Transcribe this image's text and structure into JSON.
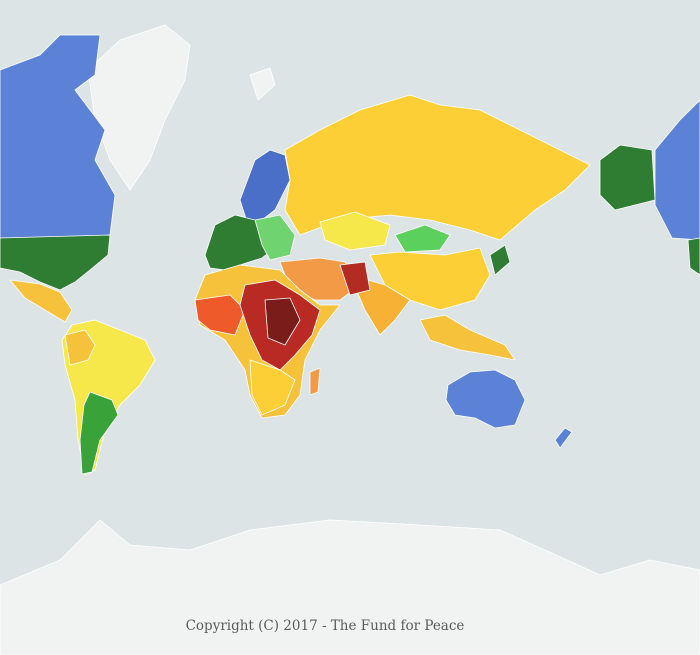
{
  "copyright": "Copyright (C) 2017 - The Fund for Peace"
}
